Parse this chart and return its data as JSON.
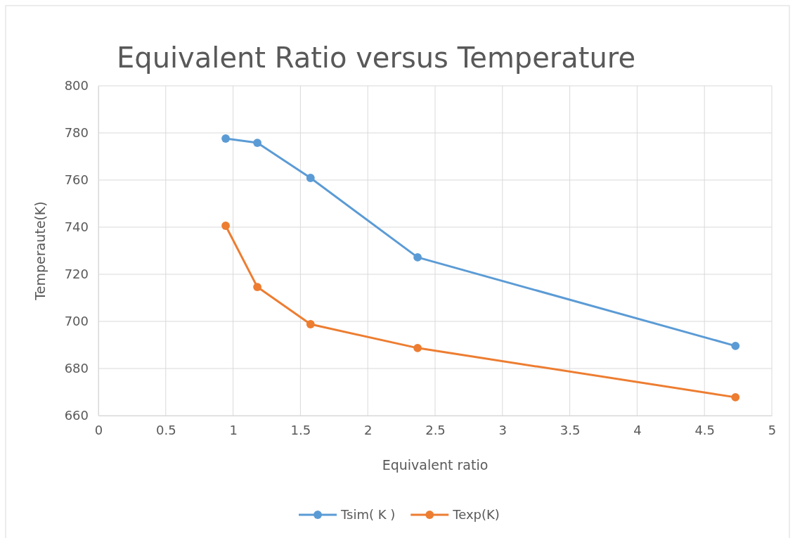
{
  "chart_data": {
    "type": "line",
    "title": "Equivalent Ratio versus Temperature",
    "xlabel": "Equivalent ratio",
    "ylabel": "Temperaute(K)",
    "x": [
      0.945,
      1.18,
      1.575,
      2.37,
      4.73
    ],
    "series": [
      {
        "name": "Tsim( K )",
        "color": "#5b9bd5",
        "values": [
          777.6,
          775.8,
          760.9,
          727.2,
          689.6
        ]
      },
      {
        "name": "Texp(K)",
        "color": "#ed7d31",
        "values": [
          740.6,
          714.6,
          698.8,
          688.7,
          667.8
        ]
      }
    ],
    "xlim": [
      0,
      5
    ],
    "xticks": [
      0,
      0.5,
      1,
      1.5,
      2,
      2.5,
      3,
      3.5,
      4,
      4.5,
      5
    ],
    "ylim": [
      660,
      800
    ],
    "yticks": [
      660,
      680,
      700,
      720,
      740,
      760,
      780,
      800
    ],
    "grid": true,
    "legend": "bottom",
    "marker": "circle",
    "line_style": "solid"
  }
}
